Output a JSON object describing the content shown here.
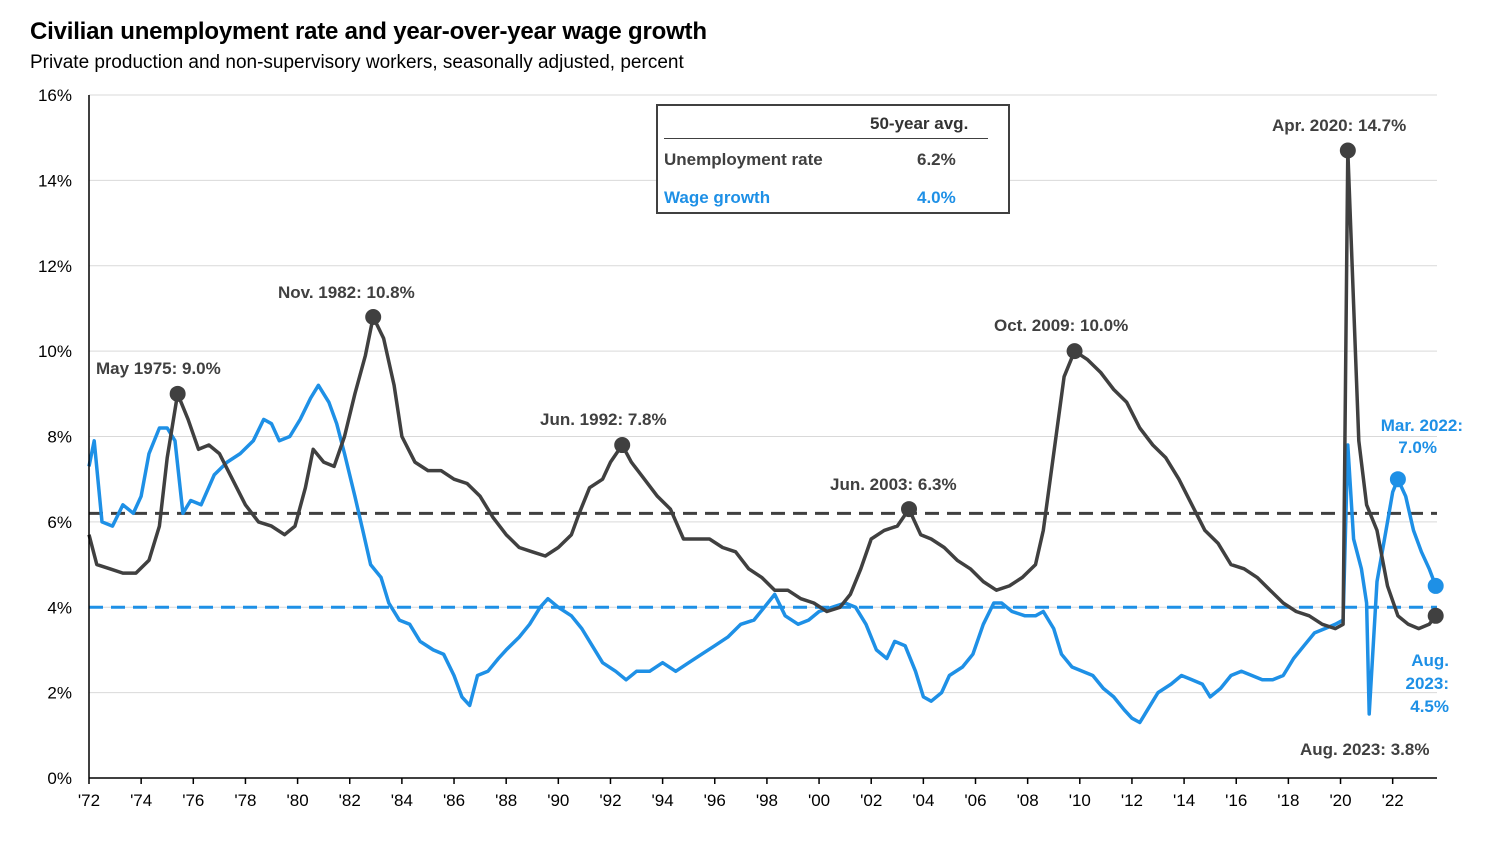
{
  "title": "Civilian unemployment rate and year-over-year wage growth",
  "subtitle": "Private production and non-supervisory workers, seasonally adjusted, percent",
  "legend": {
    "header": "50-year avg.",
    "rows": [
      {
        "label": "Unemployment rate",
        "value": "6.2%",
        "color": "#404040"
      },
      {
        "label": "Wage growth",
        "value": "4.0%",
        "color": "#1e90e6"
      }
    ]
  },
  "annotations": {
    "may1975": "May 1975: 9.0%",
    "nov1982": "Nov. 1982: 10.8%",
    "jun1992": "Jun. 1992: 7.8%",
    "jun2003": "Jun. 2003: 6.3%",
    "oct2009": "Oct. 2009: 10.0%",
    "apr2020": "Apr. 2020: 14.7%",
    "mar2022_l1": "Mar. 2022:",
    "mar2022_l2": "7.0%",
    "aug2023w_l1": "Aug.",
    "aug2023w_l2": "2023:",
    "aug2023w_l3": "4.5%",
    "aug2023u": "Aug. 2023: 3.8%"
  },
  "chart_data": {
    "type": "line",
    "title": "Civilian unemployment rate and year-over-year wage growth",
    "xlabel": "",
    "ylabel": "",
    "xlim": [
      1972,
      2023.7
    ],
    "ylim": [
      0,
      16
    ],
    "x_ticks": [
      "'72",
      "'74",
      "'76",
      "'78",
      "'80",
      "'82",
      "'84",
      "'86",
      "'88",
      "'90",
      "'92",
      "'94",
      "'96",
      "'98",
      "'00",
      "'02",
      "'04",
      "'06",
      "'08",
      "'10",
      "'12",
      "'14",
      "'16",
      "'18",
      "'20",
      "'22"
    ],
    "y_ticks": [
      "0%",
      "2%",
      "4%",
      "6%",
      "8%",
      "10%",
      "12%",
      "14%",
      "16%"
    ],
    "grid": true,
    "averages": {
      "unemployment": 6.2,
      "wage_growth": 4.0
    },
    "series": [
      {
        "name": "Unemployment rate",
        "color": "#404040",
        "points": [
          [
            1972.0,
            5.7
          ],
          [
            1972.3,
            5.0
          ],
          [
            1972.8,
            4.9
          ],
          [
            1973.3,
            4.8
          ],
          [
            1973.8,
            4.8
          ],
          [
            1974.3,
            5.1
          ],
          [
            1974.7,
            5.9
          ],
          [
            1975.0,
            7.5
          ],
          [
            1975.4,
            9.0
          ],
          [
            1975.8,
            8.4
          ],
          [
            1976.2,
            7.7
          ],
          [
            1976.6,
            7.8
          ],
          [
            1977.0,
            7.6
          ],
          [
            1977.5,
            7.0
          ],
          [
            1978.0,
            6.4
          ],
          [
            1978.5,
            6.0
          ],
          [
            1979.0,
            5.9
          ],
          [
            1979.5,
            5.7
          ],
          [
            1979.9,
            5.9
          ],
          [
            1980.3,
            6.8
          ],
          [
            1980.6,
            7.7
          ],
          [
            1981.0,
            7.4
          ],
          [
            1981.4,
            7.3
          ],
          [
            1981.8,
            8.0
          ],
          [
            1982.2,
            9.0
          ],
          [
            1982.6,
            9.9
          ],
          [
            1982.9,
            10.8
          ],
          [
            1983.3,
            10.3
          ],
          [
            1983.7,
            9.2
          ],
          [
            1984.0,
            8.0
          ],
          [
            1984.5,
            7.4
          ],
          [
            1985.0,
            7.2
          ],
          [
            1985.5,
            7.2
          ],
          [
            1986.0,
            7.0
          ],
          [
            1986.5,
            6.9
          ],
          [
            1987.0,
            6.6
          ],
          [
            1987.5,
            6.1
          ],
          [
            1988.0,
            5.7
          ],
          [
            1988.5,
            5.4
          ],
          [
            1989.0,
            5.3
          ],
          [
            1989.5,
            5.2
          ],
          [
            1990.0,
            5.4
          ],
          [
            1990.5,
            5.7
          ],
          [
            1990.8,
            6.2
          ],
          [
            1991.2,
            6.8
          ],
          [
            1991.7,
            7.0
          ],
          [
            1992.0,
            7.4
          ],
          [
            1992.45,
            7.8
          ],
          [
            1992.8,
            7.4
          ],
          [
            1993.3,
            7.0
          ],
          [
            1993.8,
            6.6
          ],
          [
            1994.3,
            6.3
          ],
          [
            1994.8,
            5.6
          ],
          [
            1995.3,
            5.6
          ],
          [
            1995.8,
            5.6
          ],
          [
            1996.3,
            5.4
          ],
          [
            1996.8,
            5.3
          ],
          [
            1997.3,
            4.9
          ],
          [
            1997.8,
            4.7
          ],
          [
            1998.3,
            4.4
          ],
          [
            1998.8,
            4.4
          ],
          [
            1999.3,
            4.2
          ],
          [
            1999.8,
            4.1
          ],
          [
            2000.3,
            3.9
          ],
          [
            2000.8,
            4.0
          ],
          [
            2001.2,
            4.3
          ],
          [
            2001.6,
            4.9
          ],
          [
            2002.0,
            5.6
          ],
          [
            2002.5,
            5.8
          ],
          [
            2003.0,
            5.9
          ],
          [
            2003.45,
            6.3
          ],
          [
            2003.9,
            5.7
          ],
          [
            2004.3,
            5.6
          ],
          [
            2004.8,
            5.4
          ],
          [
            2005.3,
            5.1
          ],
          [
            2005.8,
            4.9
          ],
          [
            2006.3,
            4.6
          ],
          [
            2006.8,
            4.4
          ],
          [
            2007.3,
            4.5
          ],
          [
            2007.8,
            4.7
          ],
          [
            2008.3,
            5.0
          ],
          [
            2008.6,
            5.8
          ],
          [
            2009.0,
            7.6
          ],
          [
            2009.4,
            9.4
          ],
          [
            2009.8,
            10.0
          ],
          [
            2010.3,
            9.8
          ],
          [
            2010.8,
            9.5
          ],
          [
            2011.3,
            9.1
          ],
          [
            2011.8,
            8.8
          ],
          [
            2012.3,
            8.2
          ],
          [
            2012.8,
            7.8
          ],
          [
            2013.3,
            7.5
          ],
          [
            2013.8,
            7.0
          ],
          [
            2014.3,
            6.4
          ],
          [
            2014.8,
            5.8
          ],
          [
            2015.3,
            5.5
          ],
          [
            2015.8,
            5.0
          ],
          [
            2016.3,
            4.9
          ],
          [
            2016.8,
            4.7
          ],
          [
            2017.3,
            4.4
          ],
          [
            2017.8,
            4.1
          ],
          [
            2018.3,
            3.9
          ],
          [
            2018.8,
            3.8
          ],
          [
            2019.3,
            3.6
          ],
          [
            2019.8,
            3.5
          ],
          [
            2020.1,
            3.6
          ],
          [
            2020.28,
            14.7
          ],
          [
            2020.5,
            11.1
          ],
          [
            2020.7,
            7.9
          ],
          [
            2021.0,
            6.4
          ],
          [
            2021.4,
            5.8
          ],
          [
            2021.8,
            4.5
          ],
          [
            2022.2,
            3.8
          ],
          [
            2022.6,
            3.6
          ],
          [
            2023.0,
            3.5
          ],
          [
            2023.4,
            3.6
          ],
          [
            2023.65,
            3.8
          ]
        ]
      },
      {
        "name": "Wage growth",
        "color": "#1e90e6",
        "points": [
          [
            1972.0,
            7.3
          ],
          [
            1972.2,
            7.9
          ],
          [
            1972.5,
            6.0
          ],
          [
            1972.9,
            5.9
          ],
          [
            1973.3,
            6.4
          ],
          [
            1973.7,
            6.2
          ],
          [
            1974.0,
            6.6
          ],
          [
            1974.3,
            7.6
          ],
          [
            1974.7,
            8.2
          ],
          [
            1975.0,
            8.2
          ],
          [
            1975.3,
            7.9
          ],
          [
            1975.6,
            6.2
          ],
          [
            1975.9,
            6.5
          ],
          [
            1976.3,
            6.4
          ],
          [
            1976.8,
            7.1
          ],
          [
            1977.3,
            7.4
          ],
          [
            1977.8,
            7.6
          ],
          [
            1978.3,
            7.9
          ],
          [
            1978.7,
            8.4
          ],
          [
            1979.0,
            8.3
          ],
          [
            1979.3,
            7.9
          ],
          [
            1979.7,
            8.0
          ],
          [
            1980.1,
            8.4
          ],
          [
            1980.5,
            8.9
          ],
          [
            1980.8,
            9.2
          ],
          [
            1981.2,
            8.8
          ],
          [
            1981.5,
            8.3
          ],
          [
            1981.8,
            7.6
          ],
          [
            1982.2,
            6.6
          ],
          [
            1982.5,
            5.8
          ],
          [
            1982.8,
            5.0
          ],
          [
            1983.2,
            4.7
          ],
          [
            1983.5,
            4.1
          ],
          [
            1983.9,
            3.7
          ],
          [
            1984.3,
            3.6
          ],
          [
            1984.7,
            3.2
          ],
          [
            1985.2,
            3.0
          ],
          [
            1985.6,
            2.9
          ],
          [
            1986.0,
            2.4
          ],
          [
            1986.3,
            1.9
          ],
          [
            1986.6,
            1.7
          ],
          [
            1986.9,
            2.4
          ],
          [
            1987.3,
            2.5
          ],
          [
            1987.7,
            2.8
          ],
          [
            1988.0,
            3.0
          ],
          [
            1988.5,
            3.3
          ],
          [
            1988.9,
            3.6
          ],
          [
            1989.3,
            4.0
          ],
          [
            1989.6,
            4.2
          ],
          [
            1990.0,
            4.0
          ],
          [
            1990.5,
            3.8
          ],
          [
            1990.9,
            3.5
          ],
          [
            1991.3,
            3.1
          ],
          [
            1991.7,
            2.7
          ],
          [
            1992.2,
            2.5
          ],
          [
            1992.6,
            2.3
          ],
          [
            1993.0,
            2.5
          ],
          [
            1993.5,
            2.5
          ],
          [
            1994.0,
            2.7
          ],
          [
            1994.5,
            2.5
          ],
          [
            1995.0,
            2.7
          ],
          [
            1995.5,
            2.9
          ],
          [
            1996.0,
            3.1
          ],
          [
            1996.5,
            3.3
          ],
          [
            1997.0,
            3.6
          ],
          [
            1997.5,
            3.7
          ],
          [
            1997.9,
            4.0
          ],
          [
            1998.3,
            4.3
          ],
          [
            1998.7,
            3.8
          ],
          [
            1999.2,
            3.6
          ],
          [
            1999.6,
            3.7
          ],
          [
            2000.0,
            3.9
          ],
          [
            2000.5,
            4.0
          ],
          [
            2001.0,
            4.1
          ],
          [
            2001.4,
            4.0
          ],
          [
            2001.8,
            3.6
          ],
          [
            2002.2,
            3.0
          ],
          [
            2002.6,
            2.8
          ],
          [
            2002.9,
            3.2
          ],
          [
            2003.3,
            3.1
          ],
          [
            2003.7,
            2.5
          ],
          [
            2004.0,
            1.9
          ],
          [
            2004.3,
            1.8
          ],
          [
            2004.7,
            2.0
          ],
          [
            2005.0,
            2.4
          ],
          [
            2005.5,
            2.6
          ],
          [
            2005.9,
            2.9
          ],
          [
            2006.3,
            3.6
          ],
          [
            2006.7,
            4.1
          ],
          [
            2007.0,
            4.1
          ],
          [
            2007.4,
            3.9
          ],
          [
            2007.9,
            3.8
          ],
          [
            2008.3,
            3.8
          ],
          [
            2008.6,
            3.9
          ],
          [
            2009.0,
            3.5
          ],
          [
            2009.3,
            2.9
          ],
          [
            2009.7,
            2.6
          ],
          [
            2010.1,
            2.5
          ],
          [
            2010.5,
            2.4
          ],
          [
            2010.9,
            2.1
          ],
          [
            2011.3,
            1.9
          ],
          [
            2011.7,
            1.6
          ],
          [
            2012.0,
            1.4
          ],
          [
            2012.3,
            1.3
          ],
          [
            2012.6,
            1.6
          ],
          [
            2013.0,
            2.0
          ],
          [
            2013.5,
            2.2
          ],
          [
            2013.9,
            2.4
          ],
          [
            2014.3,
            2.3
          ],
          [
            2014.7,
            2.2
          ],
          [
            2015.0,
            1.9
          ],
          [
            2015.4,
            2.1
          ],
          [
            2015.8,
            2.4
          ],
          [
            2016.2,
            2.5
          ],
          [
            2016.6,
            2.4
          ],
          [
            2017.0,
            2.3
          ],
          [
            2017.4,
            2.3
          ],
          [
            2017.8,
            2.4
          ],
          [
            2018.2,
            2.8
          ],
          [
            2018.6,
            3.1
          ],
          [
            2019.0,
            3.4
          ],
          [
            2019.4,
            3.5
          ],
          [
            2019.8,
            3.6
          ],
          [
            2020.1,
            3.7
          ],
          [
            2020.28,
            7.8
          ],
          [
            2020.5,
            5.6
          ],
          [
            2020.8,
            4.9
          ],
          [
            2021.0,
            4.1
          ],
          [
            2021.1,
            1.5
          ],
          [
            2021.4,
            4.6
          ],
          [
            2021.8,
            6.0
          ],
          [
            2022.0,
            6.7
          ],
          [
            2022.2,
            7.0
          ],
          [
            2022.5,
            6.6
          ],
          [
            2022.8,
            5.8
          ],
          [
            2023.1,
            5.3
          ],
          [
            2023.4,
            4.9
          ],
          [
            2023.65,
            4.5
          ]
        ]
      }
    ],
    "highlighted_points": [
      {
        "series": "Unemployment rate",
        "x": 1975.4,
        "y": 9.0,
        "label": "May 1975: 9.0%"
      },
      {
        "series": "Unemployment rate",
        "x": 1982.9,
        "y": 10.8,
        "label": "Nov. 1982: 10.8%"
      },
      {
        "series": "Unemployment rate",
        "x": 1992.45,
        "y": 7.8,
        "label": "Jun. 1992: 7.8%"
      },
      {
        "series": "Unemployment rate",
        "x": 2003.45,
        "y": 6.3,
        "label": "Jun. 2003: 6.3%"
      },
      {
        "series": "Unemployment rate",
        "x": 2009.8,
        "y": 10.0,
        "label": "Oct. 2009: 10.0%"
      },
      {
        "series": "Unemployment rate",
        "x": 2020.28,
        "y": 14.7,
        "label": "Apr. 2020: 14.7%"
      },
      {
        "series": "Wage growth",
        "x": 2022.2,
        "y": 7.0,
        "label": "Mar. 2022: 7.0%"
      },
      {
        "series": "Wage growth",
        "x": 2023.65,
        "y": 4.5,
        "label": "Aug. 2023: 4.5%"
      },
      {
        "series": "Unemployment rate",
        "x": 2023.65,
        "y": 3.8,
        "label": "Aug. 2023: 3.8%"
      }
    ]
  }
}
